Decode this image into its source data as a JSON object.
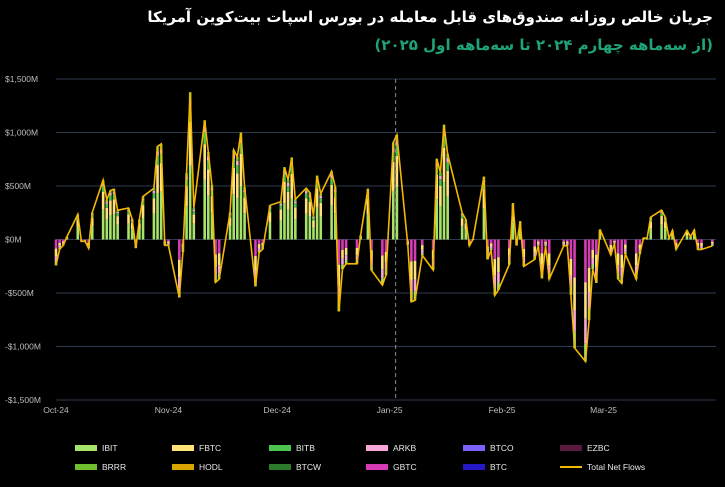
{
  "header": {
    "title": "جریان خالص روزانه صندوق‌های قابل معامله در بورس اسپات بیت‌کوین آمریکا",
    "subtitle": "(از سه‌ماهه چهارم ۲۰۲۴ تا سه‌ماهه اول ۲۰۲۵)"
  },
  "colors": {
    "background": "#000000",
    "grid": "#2e3a4d",
    "total_line": "#f5b800",
    "divider": "#8a8a8a"
  },
  "chart_data": {
    "type": "bar",
    "stacked": true,
    "title": "جریان خالص روزانه صندوق‌های قابل معامله در بورس اسپات بیت‌کوین آمریکا",
    "subtitle": "(از سه‌ماهه چهارم ۲۰۲۴ تا سه‌ماهه اول ۲۰۲۵)",
    "ylim": [
      -1500,
      1500
    ],
    "yticks": [
      "$1,500M",
      "$1,000M",
      "$500M",
      "$0M",
      "-$500M",
      "-$1,000M",
      "-$1,500M"
    ],
    "ytick_values": [
      1500,
      1000,
      500,
      0,
      -500,
      -1000,
      -1500
    ],
    "xlim": [
      "2024-10-01",
      "2025-04-01"
    ],
    "xticks": [
      "Oct-24",
      "Nov-24",
      "Dec-24",
      "Jan-25",
      "Feb-25",
      "Mar-25"
    ],
    "xtick_dates": [
      "2024-10-01",
      "2024-11-01",
      "2024-12-01",
      "2025-01-01",
      "2025-02-01",
      "2025-03-01"
    ],
    "divider_date": "2025-01-01",
    "grid": true,
    "legend_position": "bottom",
    "series": [
      {
        "name": "IBIT",
        "color": "#a6e36b"
      },
      {
        "name": "FBTC",
        "color": "#ffe27a"
      },
      {
        "name": "BITB",
        "color": "#4cc34a"
      },
      {
        "name": "ARKB",
        "color": "#f7a8d8"
      },
      {
        "name": "BTCO",
        "color": "#7b61ff"
      },
      {
        "name": "EZBC",
        "color": "#5a1a3c"
      },
      {
        "name": "BRRR",
        "color": "#6fbf2e"
      },
      {
        "name": "HODL",
        "color": "#d9a400"
      },
      {
        "name": "BTCW",
        "color": "#2c7a2c"
      },
      {
        "name": "GBTC",
        "color": "#d63cb5"
      },
      {
        "name": "BTC",
        "color": "#2418c7"
      },
      {
        "name": "Total Net Flows",
        "color": "#f5b800"
      }
    ],
    "total_net_flows": [
      [
        "2024-10-01",
        -242
      ],
      [
        "2024-10-02",
        -92
      ],
      [
        "2024-10-03",
        -54
      ],
      [
        "2024-10-04",
        25
      ],
      [
        "2024-10-07",
        235
      ],
      [
        "2024-10-08",
        -18
      ],
      [
        "2024-10-09",
        -16
      ],
      [
        "2024-10-10",
        -81
      ],
      [
        "2024-10-11",
        253
      ],
      [
        "2024-10-14",
        555
      ],
      [
        "2024-10-15",
        371
      ],
      [
        "2024-10-16",
        458
      ],
      [
        "2024-10-17",
        470
      ],
      [
        "2024-10-18",
        273
      ],
      [
        "2024-10-21",
        294
      ],
      [
        "2024-10-22",
        192
      ],
      [
        "2024-10-23",
        -80
      ],
      [
        "2024-10-24",
        188
      ],
      [
        "2024-10-25",
        402
      ],
      [
        "2024-10-28",
        479
      ],
      [
        "2024-10-29",
        870
      ],
      [
        "2024-10-30",
        893
      ],
      [
        "2024-10-31",
        -54
      ],
      [
        "2024-11-01",
        -54
      ],
      [
        "2024-11-04",
        -541
      ],
      [
        "2024-11-05",
        -116
      ],
      [
        "2024-11-06",
        621
      ],
      [
        "2024-11-07",
        1376
      ],
      [
        "2024-11-08",
        294
      ],
      [
        "2024-11-11",
        1114
      ],
      [
        "2024-11-12",
        817
      ],
      [
        "2024-11-13",
        510
      ],
      [
        "2024-11-14",
        -400
      ],
      [
        "2024-11-15",
        -370
      ],
      [
        "2024-11-18",
        255
      ],
      [
        "2024-11-19",
        837
      ],
      [
        "2024-11-20",
        773
      ],
      [
        "2024-11-21",
        1000
      ],
      [
        "2024-11-22",
        490
      ],
      [
        "2024-11-25",
        -438
      ],
      [
        "2024-11-26",
        -122
      ],
      [
        "2024-11-27",
        -90
      ],
      [
        "2024-11-29",
        320
      ],
      [
        "2024-12-02",
        353
      ],
      [
        "2024-12-03",
        676
      ],
      [
        "2024-12-04",
        556
      ],
      [
        "2024-12-05",
        766
      ],
      [
        "2024-12-06",
        376
      ],
      [
        "2024-12-09",
        479
      ],
      [
        "2024-12-10",
        439
      ],
      [
        "2024-12-11",
        223
      ],
      [
        "2024-12-12",
        597
      ],
      [
        "2024-12-13",
        428
      ],
      [
        "2024-12-16",
        637
      ],
      [
        "2024-12-17",
        493
      ],
      [
        "2024-12-18",
        -672
      ],
      [
        "2024-12-19",
        -277
      ],
      [
        "2024-12-20",
        -226
      ],
      [
        "2024-12-23",
        -227
      ],
      [
        "2024-12-24",
        38
      ],
      [
        "2024-12-26",
        475
      ],
      [
        "2024-12-27",
        -288
      ],
      [
        "2024-12-30",
        -426
      ],
      [
        "2024-12-31",
        -333
      ],
      [
        "2025-01-02",
        908
      ],
      [
        "2025-01-03",
        978
      ],
      [
        "2025-01-06",
        -52
      ],
      [
        "2025-01-07",
        -582
      ],
      [
        "2025-01-08",
        -568
      ],
      [
        "2025-01-10",
        -149
      ],
      [
        "2025-01-13",
        -284
      ],
      [
        "2025-01-14",
        755
      ],
      [
        "2025-01-15",
        626
      ],
      [
        "2025-01-16",
        1073
      ],
      [
        "2025-01-17",
        802
      ],
      [
        "2025-01-21",
        248
      ],
      [
        "2025-01-22",
        188
      ],
      [
        "2025-01-23",
        -58
      ],
      [
        "2025-01-24",
        2
      ],
      [
        "2025-01-27",
        588
      ],
      [
        "2025-01-28",
        -186
      ],
      [
        "2025-01-29",
        -100
      ],
      [
        "2025-01-30",
        -522
      ],
      [
        "2025-01-31",
        -472
      ],
      [
        "2025-02-03",
        -234
      ],
      [
        "2025-02-04",
        340
      ],
      [
        "2025-02-05",
        -56
      ],
      [
        "2025-02-06",
        171
      ],
      [
        "2025-02-07",
        -251
      ],
      [
        "2025-02-10",
        -186
      ],
      [
        "2025-02-11",
        -56
      ],
      [
        "2025-02-12",
        -364
      ],
      [
        "2025-02-13",
        -62
      ],
      [
        "2025-02-14",
        -371
      ],
      [
        "2025-02-18",
        -60
      ],
      [
        "2025-02-19",
        -55
      ],
      [
        "2025-02-20",
        -517
      ],
      [
        "2025-02-21",
        -1014
      ],
      [
        "2025-02-24",
        -1140
      ],
      [
        "2025-02-25",
        -754
      ],
      [
        "2025-02-26",
        -275
      ],
      [
        "2025-02-27",
        -405
      ],
      [
        "2025-02-28",
        94
      ],
      [
        "2025-03-03",
        -143
      ],
      [
        "2025-03-04",
        -38
      ],
      [
        "2025-03-05",
        -370
      ],
      [
        "2025-03-06",
        -409
      ],
      [
        "2025-03-07",
        -135
      ],
      [
        "2025-03-10",
        -371
      ],
      [
        "2025-03-11",
        -135
      ],
      [
        "2025-03-12",
        13
      ],
      [
        "2025-03-13",
        13
      ],
      [
        "2025-03-14",
        209
      ],
      [
        "2025-03-17",
        274
      ],
      [
        "2025-03-18",
        209
      ],
      [
        "2025-03-19",
        12
      ],
      [
        "2025-03-20",
        84
      ],
      [
        "2025-03-21",
        -93
      ],
      [
        "2025-03-24",
        84
      ],
      [
        "2025-03-25",
        27
      ],
      [
        "2025-03-26",
        89
      ],
      [
        "2025-03-27",
        -94
      ],
      [
        "2025-03-28",
        -93
      ],
      [
        "2025-03-31",
        -60
      ]
    ]
  }
}
